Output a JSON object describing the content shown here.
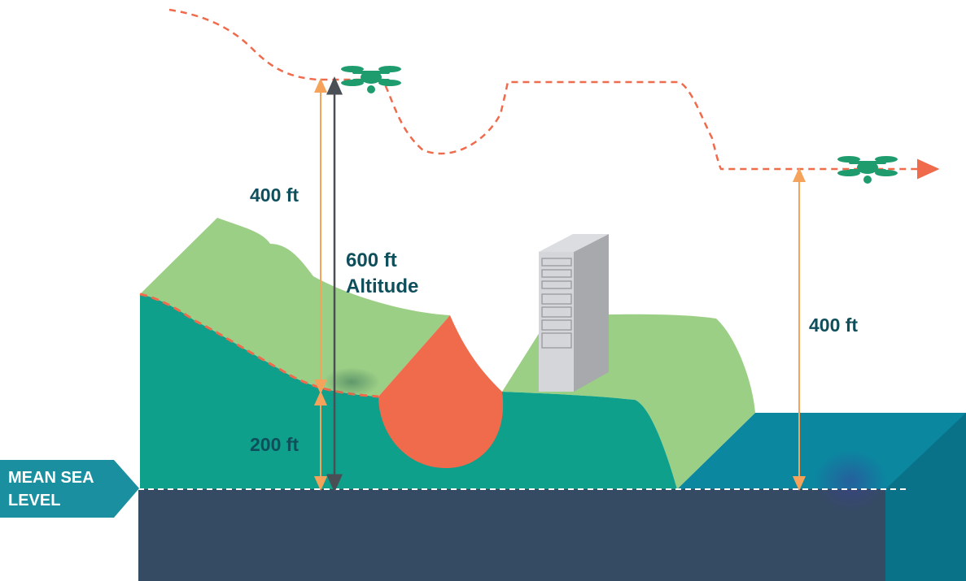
{
  "labels": {
    "left_drone_above_terrain": "400 ft",
    "terrain_above_sea": "200 ft",
    "altitude_value": "600 ft",
    "altitude_word": "Altitude",
    "right_drone_above_water": "400 ft",
    "sea_level_line1": "MEAN SEA",
    "sea_level_line2": "LEVEL"
  },
  "colors": {
    "flight_path": "#f06a4c",
    "drone": "#1f9c6e",
    "measure_orange": "#f5a35a",
    "measure_dark": "#4a4f55",
    "label_text": "#0f4f5c",
    "sea_level_tag": "#1a8fa0",
    "terrain_top": "#9ccf86",
    "terrain_side": "#0ea08a",
    "cut_face": "#f06a4c",
    "water": "#0b87a0",
    "base": "#354b63",
    "building": "#c7c9cc"
  }
}
